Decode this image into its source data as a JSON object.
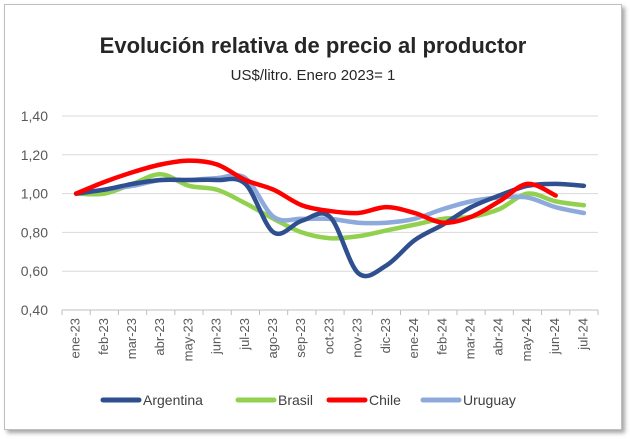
{
  "chart_data": {
    "type": "line",
    "title": "Evolución relativa de precio al productor",
    "subtitle": "US$/litro. Enero 2023= 1",
    "xlabel": "",
    "ylabel": "",
    "ylim": [
      0.4,
      1.4
    ],
    "yticks": [
      "0,40",
      "0,60",
      "0,80",
      "1,00",
      "1,20",
      "1,40"
    ],
    "grid": true,
    "legend": "bottom",
    "categories": [
      "ene-23",
      "feb-23",
      "mar-23",
      "abr-23",
      "may-23",
      "jun-23",
      "jul-23",
      "ago-23",
      "sep-23",
      "oct-23",
      "nov-23",
      "dic-23",
      "ene-24",
      "feb-24",
      "mar-24",
      "abr-24",
      "may-24",
      "jun-24",
      "jul-24"
    ],
    "series": [
      {
        "name": "Argentina",
        "color": "#2F4F8F",
        "values": [
          1.0,
          1.02,
          1.05,
          1.07,
          1.07,
          1.07,
          1.05,
          0.8,
          0.86,
          0.88,
          0.59,
          0.63,
          0.76,
          0.84,
          0.93,
          0.99,
          1.04,
          1.05,
          1.04
        ]
      },
      {
        "name": "Brasil",
        "color": "#92D050",
        "values": [
          1.0,
          1.0,
          1.05,
          1.1,
          1.04,
          1.02,
          0.95,
          0.87,
          0.8,
          0.77,
          0.78,
          0.81,
          0.84,
          0.87,
          0.88,
          0.92,
          1.0,
          0.96,
          0.94
        ]
      },
      {
        "name": "Chile",
        "color": "#FF0000",
        "values": [
          1.0,
          1.06,
          1.11,
          1.15,
          1.17,
          1.15,
          1.07,
          1.02,
          0.94,
          0.91,
          0.9,
          0.93,
          0.9,
          0.85,
          0.88,
          0.96,
          1.05,
          0.99,
          null
        ]
      },
      {
        "name": "Uruguay",
        "color": "#8EA9DB",
        "values": [
          1.0,
          1.02,
          1.04,
          1.07,
          1.07,
          1.08,
          1.08,
          0.88,
          0.87,
          0.87,
          0.85,
          0.85,
          0.87,
          0.92,
          0.96,
          0.98,
          0.98,
          0.93,
          0.9
        ]
      }
    ]
  }
}
